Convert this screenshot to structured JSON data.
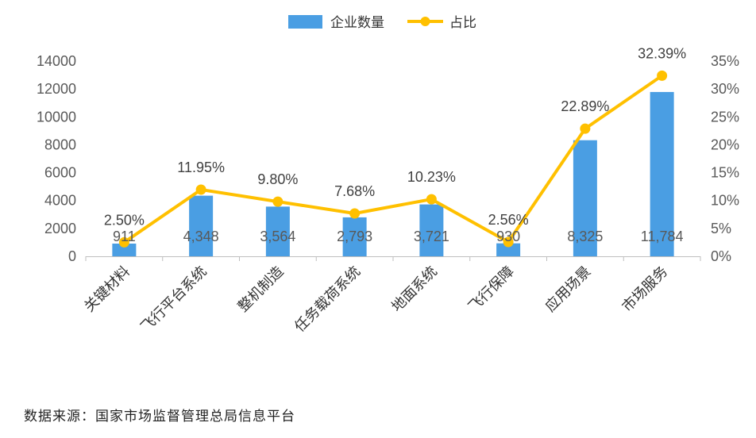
{
  "chart_data": {
    "type": "bar",
    "categories": [
      "关键材料",
      "飞行平台系统",
      "整机制造",
      "任务载荷系统",
      "地面系统",
      "飞行保障",
      "应用场景",
      "市场服务"
    ],
    "series": [
      {
        "name": "企业数量",
        "type": "bar",
        "axis": "left",
        "color": "#4A9EE3",
        "values": [
          911,
          4348,
          3564,
          2793,
          3721,
          930,
          8325,
          11784
        ],
        "labels": [
          "911",
          "4,348",
          "3,564",
          "2,793",
          "3,721",
          "930",
          "8,325",
          "11,784"
        ]
      },
      {
        "name": "占比",
        "type": "line",
        "axis": "right",
        "color": "#FFC000",
        "values": [
          2.5,
          11.95,
          9.8,
          7.68,
          10.23,
          2.56,
          22.89,
          32.39
        ],
        "labels": [
          "2.50%",
          "11.95%",
          "9.80%",
          "7.68%",
          "10.23%",
          "2.56%",
          "22.89%",
          "32.39%"
        ]
      }
    ],
    "ylim": [
      0,
      14000
    ],
    "yticks": [
      "0",
      "2000",
      "4000",
      "6000",
      "8000",
      "10000",
      "12000",
      "14000"
    ],
    "y2lim": [
      0,
      35
    ],
    "y2ticks": [
      "0%",
      "5%",
      "10%",
      "15%",
      "20%",
      "25%",
      "30%",
      "35%"
    ],
    "legend_position": "top-center",
    "grid": false
  },
  "source_text": "数据来源：国家市场监督管理总局信息平台"
}
